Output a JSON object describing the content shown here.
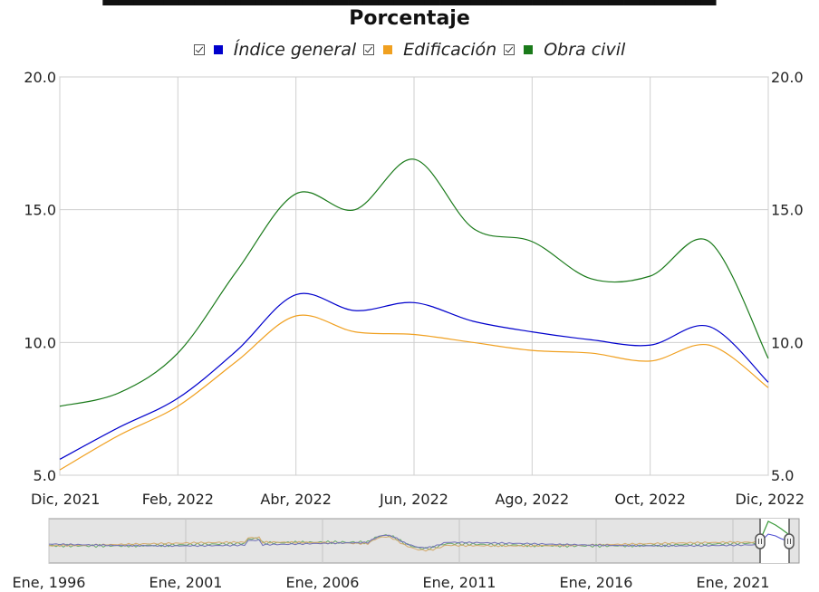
{
  "chart": {
    "title_line2": "Porcentaje",
    "legend": [
      {
        "label": "Índice general",
        "color": "#0000cc",
        "checked": true
      },
      {
        "label": "Edificación",
        "color": "#f0a020",
        "checked": true
      },
      {
        "label": "Obra civil",
        "color": "#1a7a1a",
        "checked": true
      }
    ],
    "navigator_labels": [
      "Ene, 1996",
      "Ene, 2001",
      "Ene, 2006",
      "Ene, 2011",
      "Ene, 2016",
      "Ene, 2021"
    ]
  },
  "chart_data": {
    "type": "line",
    "x": [
      "Dic, 2021",
      "Ene, 2022",
      "Feb, 2022",
      "Mar, 2022",
      "Abr, 2022",
      "May, 2022",
      "Jun, 2022",
      "Jul, 2022",
      "Ago, 2022",
      "Sep, 2022",
      "Oct, 2022",
      "Nov, 2022",
      "Dic, 2022"
    ],
    "x_tick_labels": [
      "Dic, 2021",
      "Feb, 2022",
      "Abr, 2022",
      "Jun, 2022",
      "Ago, 2022",
      "Oct, 2022",
      "Dic, 2022"
    ],
    "ylim": [
      5.0,
      20.0
    ],
    "y_tick_labels": [
      "20.0",
      "15.0",
      "10.0",
      "5.0"
    ],
    "grid": true,
    "legend_position": "top",
    "series": [
      {
        "name": "Índice general",
        "color": "#0000cc",
        "values": [
          5.6,
          6.8,
          7.9,
          9.7,
          11.8,
          11.2,
          11.5,
          10.8,
          10.4,
          10.1,
          9.9,
          10.6,
          8.5
        ]
      },
      {
        "name": "Edificación",
        "color": "#f0a020",
        "values": [
          5.2,
          6.5,
          7.6,
          9.3,
          11.0,
          10.4,
          10.3,
          10.0,
          9.7,
          9.6,
          9.3,
          9.9,
          8.3
        ]
      },
      {
        "name": "Obra civil",
        "color": "#1a7a1a",
        "values": [
          7.6,
          8.1,
          9.6,
          12.7,
          15.6,
          15.0,
          16.9,
          14.3,
          13.8,
          12.4,
          12.5,
          13.8,
          9.4
        ]
      }
    ]
  }
}
